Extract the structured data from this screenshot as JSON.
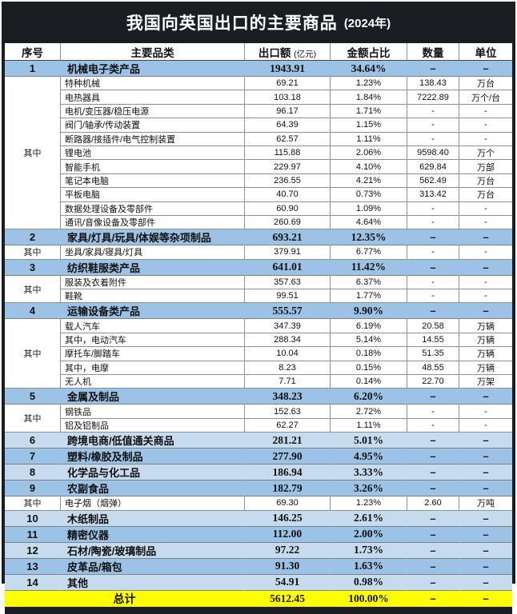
{
  "title": {
    "main": "我国向英国出口的主要商品",
    "year": "(2024年)"
  },
  "header": {
    "col_no": "序号",
    "col_category": "主要品类",
    "col_amount": "出口额",
    "col_amount_note": "(亿元)",
    "col_share": "金额占比",
    "col_qty": "数量",
    "col_unit": "单位"
  },
  "colors": {
    "title_bar_bg": "#1a1d22",
    "category_row_blue": "#9cc3e6",
    "category_row_light_blue": "#c6dbee",
    "total_row_yellow": "#ffff00"
  },
  "chart_data": {
    "type": "table",
    "title": "我国向英国出口的主要商品 (2024年)",
    "columns": [
      "序号",
      "主要品类",
      "出口额(亿元)",
      "金额占比",
      "数量",
      "单位"
    ],
    "rows": [
      {
        "type": "main",
        "no": "1",
        "name": "机械电子类产品",
        "amount": "1943.91",
        "share": "34.64%",
        "qty": "–",
        "unit": "–",
        "shade": "dark"
      },
      {
        "type": "sub",
        "group": "其中",
        "span": 11,
        "name": "特种机械",
        "amount": "69.21",
        "share": "1.23%",
        "qty": "138.43",
        "unit": "万台"
      },
      {
        "type": "sub",
        "name": "电热器具",
        "amount": "103.18",
        "share": "1.84%",
        "qty": "7222.89",
        "unit": "万个/台"
      },
      {
        "type": "sub",
        "name": "电机/变压器/稳压电源",
        "amount": "96.17",
        "share": "1.71%",
        "qty": "-",
        "unit": "-"
      },
      {
        "type": "sub",
        "name": "阀门/轴承/传动装置",
        "amount": "64.39",
        "share": "1.15%",
        "qty": "-",
        "unit": "-"
      },
      {
        "type": "sub",
        "name": "断路器/接插件/电气控制装置",
        "amount": "62.57",
        "share": "1.11%",
        "qty": "-",
        "unit": "-"
      },
      {
        "type": "sub",
        "name": "锂电池",
        "amount": "115.88",
        "share": "2.06%",
        "qty": "9598.40",
        "unit": "万个"
      },
      {
        "type": "sub",
        "name": "智能手机",
        "amount": "229.97",
        "share": "4.10%",
        "qty": "629.84",
        "unit": "万部"
      },
      {
        "type": "sub",
        "name": "笔记本电脑",
        "amount": "236.55",
        "share": "4.21%",
        "qty": "562.49",
        "unit": "万台"
      },
      {
        "type": "sub",
        "name": "平板电脑",
        "amount": "40.70",
        "share": "0.73%",
        "qty": "313.42",
        "unit": "万台"
      },
      {
        "type": "sub",
        "name": "数据处理设备及零部件",
        "amount": "60.90",
        "share": "1.09%",
        "qty": "-",
        "unit": "-"
      },
      {
        "type": "sub",
        "name": "通讯/音像设备及零部件",
        "amount": "260.69",
        "share": "4.64%",
        "qty": "-",
        "unit": "-"
      },
      {
        "type": "main",
        "no": "2",
        "name": "家具/灯具/玩具/体娱等杂项制品",
        "amount": "693.21",
        "share": "12.35%",
        "qty": "–",
        "unit": "–",
        "shade": "dark"
      },
      {
        "type": "sub",
        "group": "其中",
        "span": 1,
        "name": "坐具/家具/寝具/灯具",
        "amount": "379.91",
        "share": "6.77%",
        "qty": "-",
        "unit": "-"
      },
      {
        "type": "main",
        "no": "3",
        "name": "纺织鞋服类产品",
        "amount": "641.01",
        "share": "11.42%",
        "qty": "–",
        "unit": "–",
        "shade": "dark"
      },
      {
        "type": "sub",
        "group": "其中",
        "span": 2,
        "name": "服装及衣着附件",
        "amount": "357.63",
        "share": "6.37%",
        "qty": "-",
        "unit": "-"
      },
      {
        "type": "sub",
        "name": "鞋靴",
        "amount": "99.51",
        "share": "1.77%",
        "qty": "-",
        "unit": "-"
      },
      {
        "type": "main",
        "no": "4",
        "name": "运输设备类产品",
        "amount": "555.57",
        "share": "9.90%",
        "qty": "–",
        "unit": "–",
        "shade": "dark"
      },
      {
        "type": "sub",
        "group": "其中",
        "span": 5,
        "name": "载人汽车",
        "amount": "347.39",
        "share": "6.19%",
        "qty": "20.58",
        "unit": "万辆"
      },
      {
        "type": "sub",
        "name": "其中，电动汽车",
        "amount": "288.34",
        "share": "5.14%",
        "qty": "14.55",
        "unit": "万辆"
      },
      {
        "type": "sub",
        "name": "摩托车/脚踏车",
        "amount": "10.04",
        "share": "0.18%",
        "qty": "51.35",
        "unit": "万辆"
      },
      {
        "type": "sub",
        "name": "其中，电摩",
        "amount": "8.23",
        "share": "0.15%",
        "qty": "48.55",
        "unit": "万辆"
      },
      {
        "type": "sub",
        "name": "无人机",
        "amount": "7.71",
        "share": "0.14%",
        "qty": "22.70",
        "unit": "万架"
      },
      {
        "type": "main",
        "no": "5",
        "name": "金属及制品",
        "amount": "348.23",
        "share": "6.20%",
        "qty": "–",
        "unit": "–",
        "shade": "dark"
      },
      {
        "type": "sub",
        "group": "其中",
        "span": 2,
        "name": "钢铁品",
        "amount": "152.63",
        "share": "2.72%",
        "qty": "-",
        "unit": "-"
      },
      {
        "type": "sub",
        "name": "铝及铝制品",
        "amount": "62.27",
        "share": "1.11%",
        "qty": "-",
        "unit": "-"
      },
      {
        "type": "main",
        "no": "6",
        "name": "跨境电商/低值通关商品",
        "amount": "281.21",
        "share": "5.01%",
        "qty": "–",
        "unit": "–",
        "shade": "light"
      },
      {
        "type": "main",
        "no": "7",
        "name": "塑料/橡胶及制品",
        "amount": "277.90",
        "share": "4.95%",
        "qty": "–",
        "unit": "–",
        "shade": "dark"
      },
      {
        "type": "main",
        "no": "8",
        "name": "化学品与化工品",
        "amount": "186.94",
        "share": "3.33%",
        "qty": "–",
        "unit": "–",
        "shade": "light"
      },
      {
        "type": "main",
        "no": "9",
        "name": "农副食品",
        "amount": "182.79",
        "share": "3.26%",
        "qty": "–",
        "unit": "–",
        "shade": "dark"
      },
      {
        "type": "sub",
        "group": "其中",
        "span": 1,
        "name": "电子烟（烟弹）",
        "amount": "69.30",
        "share": "1.23%",
        "qty": "2.60",
        "unit": "万吨"
      },
      {
        "type": "main",
        "no": "10",
        "name": "木纸制品",
        "amount": "146.25",
        "share": "2.61%",
        "qty": "–",
        "unit": "–",
        "shade": "light"
      },
      {
        "type": "main",
        "no": "11",
        "name": "精密仪器",
        "amount": "112.00",
        "share": "2.00%",
        "qty": "–",
        "unit": "–",
        "shade": "dark"
      },
      {
        "type": "main",
        "no": "12",
        "name": "石材/陶瓷/玻璃制品",
        "amount": "97.22",
        "share": "1.73%",
        "qty": "–",
        "unit": "–",
        "shade": "light"
      },
      {
        "type": "main",
        "no": "13",
        "name": "皮革品/箱包",
        "amount": "91.30",
        "share": "1.63%",
        "qty": "–",
        "unit": "–",
        "shade": "dark"
      },
      {
        "type": "main",
        "no": "14",
        "name": "其他",
        "amount": "54.91",
        "share": "0.98%",
        "qty": "–",
        "unit": "–",
        "shade": "light"
      }
    ],
    "total": {
      "label": "总计",
      "amount": "5612.45",
      "share": "100.00%",
      "qty": "–",
      "unit": "–"
    }
  }
}
